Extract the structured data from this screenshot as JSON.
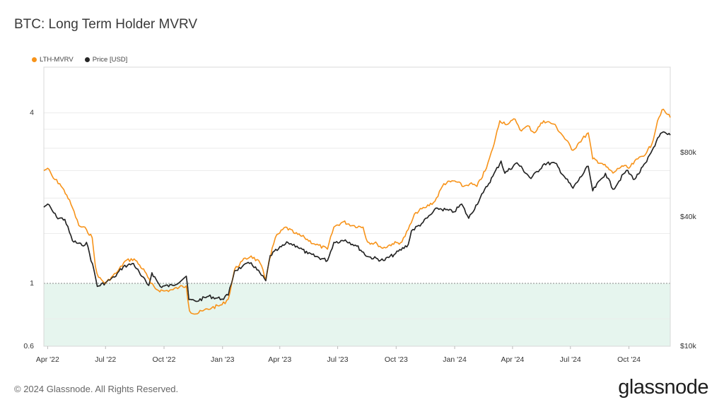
{
  "header": {
    "title": "BTC: Long Term Holder MVRV"
  },
  "footer": {
    "copyright": "© 2024 Glassnode. All Rights Reserved.",
    "brand": "glassnode"
  },
  "colors": {
    "lth_mvrv": "#f7931a",
    "price": "#262626",
    "zone": "#e6f5ee"
  },
  "chart_data": {
    "type": "line",
    "title": "BTC: Long Term Holder MVRV",
    "x_ticks": [
      "Apr '22",
      "Jul '22",
      "Oct '22",
      "Jan '23",
      "Apr '23",
      "Jul '23",
      "Oct '23",
      "Jan '24",
      "Apr '24",
      "Jul '24",
      "Oct '24"
    ],
    "x_range": [
      "2022-03-26",
      "2024-12-05"
    ],
    "y_left": {
      "ticks": [
        "0.6",
        "1",
        "4"
      ],
      "tick_values": [
        0.6,
        1,
        4
      ],
      "scale": "log",
      "range": [
        0.6,
        5.8
      ]
    },
    "y_right": {
      "ticks": [
        "$10k",
        "$40k",
        "$80k"
      ],
      "tick_values": [
        10000,
        40000,
        80000
      ],
      "scale": "log",
      "range": [
        10000,
        200000
      ]
    },
    "shaded_zone": {
      "axis": "left",
      "from": 0.6,
      "to": 1.0
    },
    "legend": {
      "position": "top-left"
    },
    "series": [
      {
        "name": "LTH-MVRV",
        "axis": "left",
        "points": [
          [
            "2022-03-26",
            2.5
          ],
          [
            "2022-04-01",
            2.55
          ],
          [
            "2022-04-10",
            2.35
          ],
          [
            "2022-04-20",
            2.25
          ],
          [
            "2022-05-01",
            2.05
          ],
          [
            "2022-05-10",
            1.85
          ],
          [
            "2022-05-20",
            1.6
          ],
          [
            "2022-06-01",
            1.55
          ],
          [
            "2022-06-10",
            1.45
          ],
          [
            "2022-06-15",
            1.15
          ],
          [
            "2022-06-20",
            1.05
          ],
          [
            "2022-07-01",
            1.0
          ],
          [
            "2022-07-10",
            1.05
          ],
          [
            "2022-07-20",
            1.1
          ],
          [
            "2022-08-01",
            1.2
          ],
          [
            "2022-08-15",
            1.22
          ],
          [
            "2022-09-01",
            1.1
          ],
          [
            "2022-09-10",
            1.0
          ],
          [
            "2022-09-20",
            0.95
          ],
          [
            "2022-10-01",
            0.94
          ],
          [
            "2022-10-15",
            0.95
          ],
          [
            "2022-10-25",
            0.97
          ],
          [
            "2022-11-05",
            0.98
          ],
          [
            "2022-11-10",
            0.8
          ],
          [
            "2022-11-20",
            0.78
          ],
          [
            "2022-12-01",
            0.8
          ],
          [
            "2022-12-15",
            0.82
          ],
          [
            "2022-12-31",
            0.84
          ],
          [
            "2023-01-10",
            0.88
          ],
          [
            "2023-01-20",
            1.12
          ],
          [
            "2023-02-01",
            1.2
          ],
          [
            "2023-02-15",
            1.25
          ],
          [
            "2023-03-01",
            1.18
          ],
          [
            "2023-03-10",
            1.03
          ],
          [
            "2023-03-15",
            1.2
          ],
          [
            "2023-03-25",
            1.45
          ],
          [
            "2023-04-10",
            1.58
          ],
          [
            "2023-04-25",
            1.5
          ],
          [
            "2023-05-10",
            1.45
          ],
          [
            "2023-05-25",
            1.38
          ],
          [
            "2023-06-15",
            1.32
          ],
          [
            "2023-06-25",
            1.58
          ],
          [
            "2023-07-10",
            1.65
          ],
          [
            "2023-07-25",
            1.6
          ],
          [
            "2023-08-10",
            1.58
          ],
          [
            "2023-08-17",
            1.4
          ],
          [
            "2023-09-01",
            1.38
          ],
          [
            "2023-09-10",
            1.33
          ],
          [
            "2023-09-25",
            1.38
          ],
          [
            "2023-10-10",
            1.4
          ],
          [
            "2023-10-20",
            1.55
          ],
          [
            "2023-11-01",
            1.78
          ],
          [
            "2023-11-15",
            1.85
          ],
          [
            "2023-12-01",
            1.95
          ],
          [
            "2023-12-15",
            2.25
          ],
          [
            "2024-01-01",
            2.3
          ],
          [
            "2024-01-15",
            2.2
          ],
          [
            "2024-01-25",
            2.25
          ],
          [
            "2024-02-05",
            2.2
          ],
          [
            "2024-02-20",
            2.55
          ],
          [
            "2024-03-01",
            3.0
          ],
          [
            "2024-03-12",
            3.75
          ],
          [
            "2024-03-25",
            3.65
          ],
          [
            "2024-04-05",
            3.8
          ],
          [
            "2024-04-15",
            3.45
          ],
          [
            "2024-04-25",
            3.6
          ],
          [
            "2024-05-05",
            3.4
          ],
          [
            "2024-05-20",
            3.75
          ],
          [
            "2024-06-05",
            3.65
          ],
          [
            "2024-06-20",
            3.3
          ],
          [
            "2024-07-05",
            2.95
          ],
          [
            "2024-07-15",
            3.15
          ],
          [
            "2024-07-29",
            3.4
          ],
          [
            "2024-08-05",
            2.75
          ],
          [
            "2024-08-20",
            2.65
          ],
          [
            "2024-09-06",
            2.45
          ],
          [
            "2024-09-20",
            2.6
          ],
          [
            "2024-10-01",
            2.55
          ],
          [
            "2024-10-15",
            2.75
          ],
          [
            "2024-10-29",
            2.9
          ],
          [
            "2024-11-06",
            3.1
          ],
          [
            "2024-11-15",
            3.75
          ],
          [
            "2024-11-22",
            4.1
          ],
          [
            "2024-12-01",
            3.95
          ],
          [
            "2024-12-05",
            3.85
          ]
        ]
      },
      {
        "name": "Price [USD]",
        "axis": "right",
        "points": [
          [
            "2022-03-26",
            44500
          ],
          [
            "2022-04-01",
            46000
          ],
          [
            "2022-04-15",
            40000
          ],
          [
            "2022-04-28",
            39000
          ],
          [
            "2022-05-10",
            31000
          ],
          [
            "2022-05-25",
            29500
          ],
          [
            "2022-06-01",
            30500
          ],
          [
            "2022-06-13",
            22500
          ],
          [
            "2022-06-18",
            19000
          ],
          [
            "2022-07-01",
            19800
          ],
          [
            "2022-07-15",
            21000
          ],
          [
            "2022-07-29",
            23500
          ],
          [
            "2022-08-14",
            24300
          ],
          [
            "2022-08-25",
            21500
          ],
          [
            "2022-09-07",
            19200
          ],
          [
            "2022-09-12",
            22000
          ],
          [
            "2022-09-25",
            19000
          ],
          [
            "2022-10-15",
            19200
          ],
          [
            "2022-11-05",
            21200
          ],
          [
            "2022-11-09",
            16500
          ],
          [
            "2022-11-20",
            16200
          ],
          [
            "2022-12-10",
            17100
          ],
          [
            "2022-12-31",
            16600
          ],
          [
            "2023-01-10",
            17300
          ],
          [
            "2023-01-20",
            22500
          ],
          [
            "2023-02-01",
            23500
          ],
          [
            "2023-02-15",
            24500
          ],
          [
            "2023-03-10",
            20200
          ],
          [
            "2023-03-17",
            26500
          ],
          [
            "2023-03-30",
            28400
          ],
          [
            "2023-04-14",
            30400
          ],
          [
            "2023-04-28",
            29300
          ],
          [
            "2023-05-15",
            27000
          ],
          [
            "2023-06-15",
            25100
          ],
          [
            "2023-06-25",
            30500
          ],
          [
            "2023-07-13",
            31300
          ],
          [
            "2023-07-31",
            29300
          ],
          [
            "2023-08-17",
            26200
          ],
          [
            "2023-09-11",
            25100
          ],
          [
            "2023-09-30",
            27000
          ],
          [
            "2023-10-20",
            29800
          ],
          [
            "2023-10-25",
            34500
          ],
          [
            "2023-11-10",
            37300
          ],
          [
            "2023-12-05",
            44000
          ],
          [
            "2023-12-31",
            42300
          ],
          [
            "2024-01-12",
            46000
          ],
          [
            "2024-01-23",
            39500
          ],
          [
            "2024-02-15",
            52000
          ],
          [
            "2024-03-01",
            62000
          ],
          [
            "2024-03-14",
            73000
          ],
          [
            "2024-03-20",
            64000
          ],
          [
            "2024-04-08",
            71600
          ],
          [
            "2024-04-30",
            60500
          ],
          [
            "2024-05-21",
            71000
          ],
          [
            "2024-06-07",
            71300
          ],
          [
            "2024-06-24",
            60300
          ],
          [
            "2024-07-05",
            54500
          ],
          [
            "2024-07-29",
            69000
          ],
          [
            "2024-08-05",
            53000
          ],
          [
            "2024-08-25",
            64000
          ],
          [
            "2024-09-06",
            53900
          ],
          [
            "2024-09-27",
            66000
          ],
          [
            "2024-10-10",
            60000
          ],
          [
            "2024-10-29",
            72500
          ],
          [
            "2024-11-13",
            90000
          ],
          [
            "2024-11-22",
            99000
          ],
          [
            "2024-12-01",
            97000
          ],
          [
            "2024-12-05",
            96500
          ]
        ]
      }
    ]
  }
}
